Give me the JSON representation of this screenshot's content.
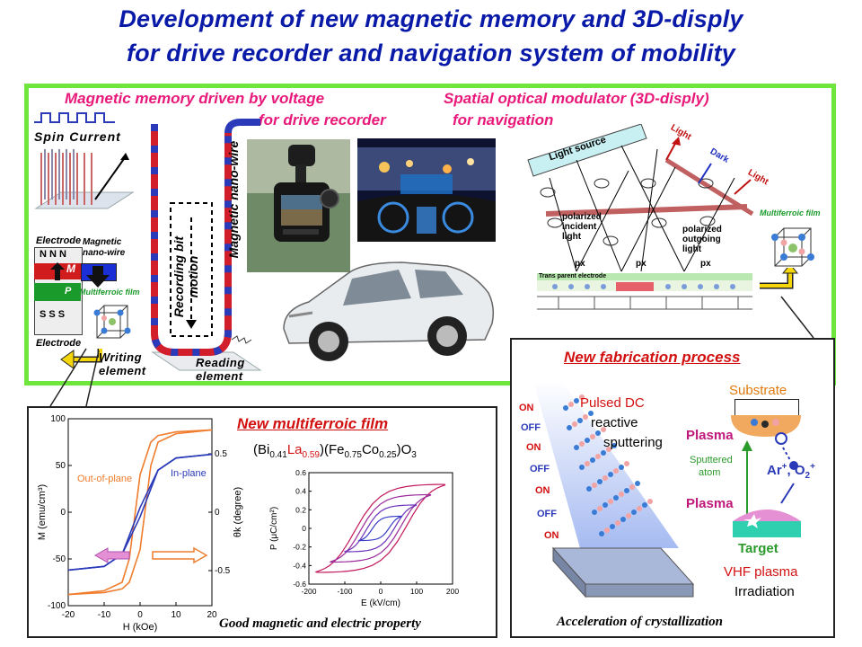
{
  "title": {
    "line1": "Development of new magnetic memory and 3D-disply",
    "line2": "for drive recorder and navigation system of mobility"
  },
  "top_panel": {
    "left_heading_1": "Magnetic memory driven by voltage",
    "left_heading_2": "for drive recorder",
    "right_heading_1": "Spatial optical modulator (3D-disply)",
    "right_heading_2": "for navigation",
    "spin_current": "Spin Current",
    "electrode_top": "Electrode",
    "electrode_bottom": "Electrode",
    "magnetic_nanowire_small": "Magnetic nano-wire",
    "nnn": "N N N",
    "sss": "S S S",
    "m_label": "M",
    "p_label": "P",
    "multiferroic_film_left": "Multiferroic film",
    "recording_bit_motion": "Recording bit motion",
    "magnetic_nanowire_vertical": "Magnetic nano-wire",
    "writing_element": "Writing element",
    "reading_element": "Reading element",
    "light_source": "Light source",
    "light_1": "Light",
    "dark": "Dark",
    "light_2": "Light",
    "polarized_incident": "polarized incident light",
    "polarized_outgoing": "polarized outgoing light",
    "px": [
      "px",
      "px",
      "px"
    ],
    "transparent_electrode": "Trans parent electrode",
    "multiferroic_film_right": "Multiferroic film"
  },
  "film_panel": {
    "heading": "New multiferroic film",
    "formula": {
      "p1": "(Bi",
      "s1": "0.41",
      "p2": "La",
      "s2": "0.59",
      "p3": ")(Fe",
      "s3": "0.75",
      "p4": "Co",
      "s4": "0.25",
      "p5": ")O",
      "s5": "3"
    },
    "caption": "Good magnetic and electric property"
  },
  "fab_panel": {
    "heading": "New fabrication process",
    "pulsed_dc": "Pulsed DC",
    "reactive": "reactive",
    "sputtering": "sputtering",
    "substrate": "Substrate",
    "plasma_top": "Plasma",
    "sputtered": "Sputtered",
    "atom": "atom",
    "ar": "Ar",
    "o2": ", O",
    "plasma_bottom": "Plasma",
    "target": "Target",
    "vhf": "VHF plasma",
    "irradiation": "Irradiation",
    "onoff": [
      "ON",
      "OFF",
      "ON",
      "OFF",
      "ON",
      "OFF",
      "ON"
    ],
    "caption": "Acceleration of crystallization"
  },
  "chart_data": [
    {
      "type": "line",
      "title": "",
      "xlabel": "H (kOe)",
      "ylabel": "M (emu/cm³)",
      "y2label": "θk (degree)",
      "xlim": [
        -20,
        20
      ],
      "ylim": [
        -100,
        100
      ],
      "y2lim": [
        -0.8,
        0.8
      ],
      "xticks": [
        "-20",
        "-10",
        "0",
        "10",
        "20"
      ],
      "yticks": [
        "100",
        "50",
        "0",
        "-50",
        "-100"
      ],
      "y2ticks": [
        "0.5",
        "0",
        "-0.5"
      ],
      "series": [
        {
          "name": "Out-of-plane",
          "color": "#f07d2e",
          "x": [
            -20,
            -10,
            -5,
            -3,
            0,
            3,
            5,
            10,
            20
          ],
          "y": [
            -88,
            -84,
            -75,
            -50,
            40,
            75,
            82,
            86,
            88
          ]
        },
        {
          "name": "In-plane",
          "color": "#2b3ab8",
          "x": [
            -20,
            -10,
            -5,
            0,
            5,
            10,
            20
          ],
          "y": [
            -62,
            -58,
            -45,
            5,
            45,
            58,
            62
          ]
        }
      ]
    },
    {
      "type": "line",
      "title": "",
      "xlabel": "E (kV/cm)",
      "ylabel": "P (μC/cm²)",
      "xlim": [
        -200,
        200
      ],
      "ylim": [
        -0.6,
        0.6
      ],
      "xticks": [
        "-200",
        "-100",
        "0",
        "100",
        "200"
      ],
      "yticks": [
        "0.6",
        "0.4",
        "0.2",
        "0",
        "-0.2",
        "-0.4",
        "-0.6"
      ],
      "series": [
        {
          "color": "#c0185a",
          "amplitude_E": 180,
          "amplitude_P": 0.47
        },
        {
          "color": "#9b2a9b",
          "amplitude_E": 140,
          "amplitude_P": 0.36
        },
        {
          "color": "#6a2fb8",
          "amplitude_E": 100,
          "amplitude_P": 0.25
        },
        {
          "color": "#3a3ec8",
          "amplitude_E": 60,
          "amplitude_P": 0.13
        }
      ]
    }
  ],
  "colors": {
    "title_blue": "#0a1aa8",
    "panel_green": "#6ee63c",
    "heading_pink": "#e8197a",
    "heading_red": "#d31010"
  }
}
